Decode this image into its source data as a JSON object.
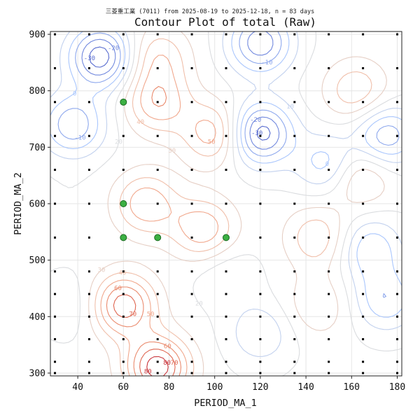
{
  "chart_data": {
    "type": "contour",
    "subtitle": "三菱重工業 (7011) from 2025-08-19 to 2025-12-18, n = 83 days",
    "title": "Contour Plot of total (Raw)",
    "xlabel": "PERIOD_MA_1",
    "ylabel": "PERIOD_MA_2",
    "xlim": [
      28,
      182
    ],
    "ylim": [
      295,
      905
    ],
    "xticks": [
      40,
      60,
      80,
      100,
      120,
      140,
      160,
      180
    ],
    "yticks": [
      300,
      400,
      500,
      600,
      700,
      800,
      900
    ],
    "grid": true,
    "colormap": "coolwarm",
    "contour_levels": [
      -40,
      -30,
      -20,
      -10,
      0,
      10,
      20,
      30,
      40,
      50,
      60,
      70,
      80,
      90
    ],
    "sample_grid_x": [
      30,
      45,
      60,
      75,
      90,
      105,
      120,
      135,
      150,
      165,
      180
    ],
    "sample_grid_y": [
      300,
      320,
      360,
      400,
      440,
      480,
      540,
      600,
      660,
      720,
      780,
      840,
      900
    ],
    "best_points": [
      {
        "x": 60,
        "y": 780
      },
      {
        "x": 60,
        "y": 600
      },
      {
        "x": 60,
        "y": 540
      },
      {
        "x": 75,
        "y": 540
      },
      {
        "x": 105,
        "y": 540
      }
    ],
    "peaks": [
      {
        "x": 60,
        "y": 420,
        "value": 80
      },
      {
        "x": 75,
        "y": 310,
        "value": 90
      },
      {
        "x": 100,
        "y": 725,
        "value": 60
      },
      {
        "x": 70,
        "y": 600,
        "value": 60
      },
      {
        "x": 75,
        "y": 780,
        "value": 60
      },
      {
        "x": 95,
        "y": 555,
        "value": 60
      },
      {
        "x": 145,
        "y": 540,
        "value": 50
      },
      {
        "x": 163,
        "y": 650,
        "value": 50
      },
      {
        "x": 162,
        "y": 800,
        "value": 50
      },
      {
        "x": 75,
        "y": 860,
        "value": 50
      },
      {
        "x": 145,
        "y": 420,
        "value": 40
      },
      {
        "x": 120,
        "y": 725,
        "value": -40
      },
      {
        "x": 50,
        "y": 860,
        "value": -40
      },
      {
        "x": 120,
        "y": 885,
        "value": -30
      },
      {
        "x": 38,
        "y": 740,
        "value": -20
      },
      {
        "x": 150,
        "y": 670,
        "value": -10
      },
      {
        "x": 175,
        "y": 720,
        "value": -20
      },
      {
        "x": 168,
        "y": 520,
        "value": -10
      },
      {
        "x": 175,
        "y": 430,
        "value": -10
      },
      {
        "x": 38,
        "y": 420,
        "value": 10
      },
      {
        "x": 120,
        "y": 370,
        "value": 0
      },
      {
        "x": 105,
        "y": 475,
        "value": 10
      },
      {
        "x": 38,
        "y": 600,
        "value": 20
      }
    ]
  }
}
